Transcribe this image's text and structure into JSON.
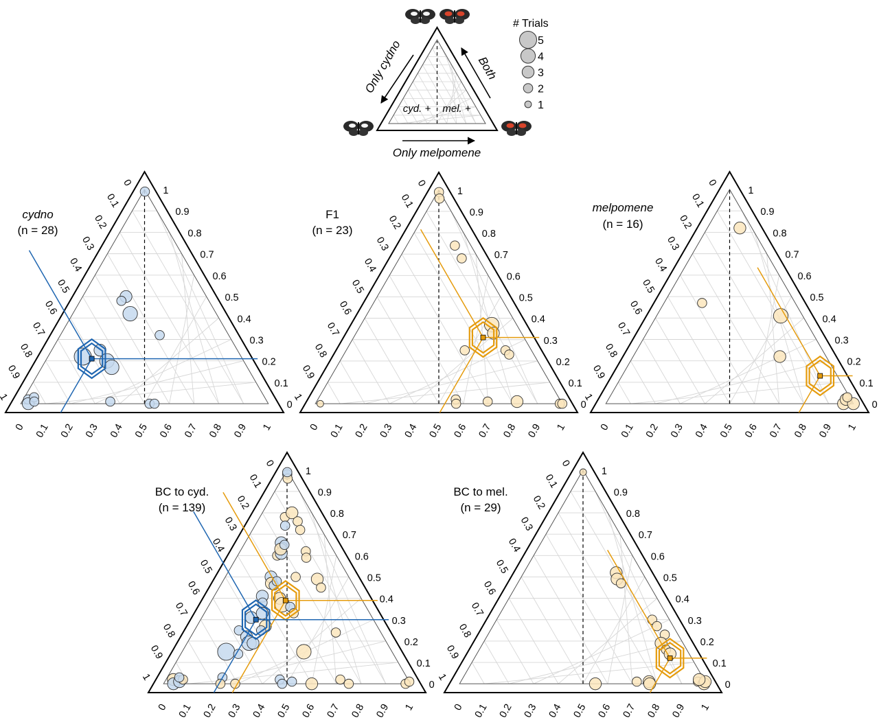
{
  "colors": {
    "cydno": "#1f66b1",
    "cydno_fill": "#c6d9ee",
    "melpomene": "#e59b0c",
    "melpomene_fill": "#fbe6bd",
    "grid": "#d6d6d6",
    "axis": "#000000"
  },
  "legend": {
    "title": "# Trials",
    "items": [
      "5",
      "4",
      "3",
      "2",
      "1"
    ],
    "arrow_left": "Only cydno",
    "arrow_right": "Both",
    "arrow_bottom": "Only melpomene",
    "inner_left": "cyd. +",
    "inner_right": "mel. +"
  },
  "ticks": {
    "left": [
      "0",
      "0.1",
      "0.2",
      "0.3",
      "0.4",
      "0.5",
      "0.6",
      "0.7",
      "0.8",
      "0.9",
      "1"
    ],
    "right": [
      "0",
      "0.1",
      "0.2",
      "0.3",
      "0.4",
      "0.5",
      "0.6",
      "0.7",
      "0.8",
      "0.9",
      "1"
    ],
    "bottom": [
      "0",
      "0.1",
      "0.2",
      "0.3",
      "0.4",
      "0.5",
      "0.6",
      "0.7",
      "0.8",
      "0.9",
      "1"
    ]
  },
  "chart_data": [
    {
      "type": "scatter",
      "title": "cydno",
      "subtitle": "(n = 28)",
      "mean": {
        "series": "cydno",
        "x": 0.23,
        "y": 0.21
      },
      "points": [
        {
          "x": 0.63,
          "y": 0.99,
          "trials": 2,
          "group": "cydno"
        },
        {
          "x": 0.35,
          "y": 0.5,
          "trials": 3,
          "group": "cydno"
        },
        {
          "x": 0.32,
          "y": 0.48,
          "trials": 2,
          "group": "cydno"
        },
        {
          "x": 0.4,
          "y": 0.42,
          "trials": 4,
          "group": "cydno"
        },
        {
          "x": 0.59,
          "y": 0.32,
          "trials": 2,
          "group": "cydno"
        },
        {
          "x": 0.26,
          "y": 0.25,
          "trials": 3,
          "group": "cydno"
        },
        {
          "x": 0.18,
          "y": 0.22,
          "trials": 5,
          "group": "cydno"
        },
        {
          "x": 0.31,
          "y": 0.2,
          "trials": 4,
          "group": "cydno"
        },
        {
          "x": 0.34,
          "y": 0.17,
          "trials": 4,
          "group": "cydno"
        },
        {
          "x": 0.02,
          "y": 0.02,
          "trials": 2,
          "group": "cydno"
        },
        {
          "x": 0.03,
          "y": 0.0,
          "trials": 3,
          "group": "cydno"
        },
        {
          "x": 0.04,
          "y": 0.03,
          "trials": 2,
          "group": "cydno"
        },
        {
          "x": 0.05,
          "y": 0.01,
          "trials": 2,
          "group": "cydno"
        },
        {
          "x": 0.36,
          "y": 0.01,
          "trials": 2,
          "group": "cydno"
        },
        {
          "x": 0.52,
          "y": 0.0,
          "trials": 2,
          "group": "cydno"
        },
        {
          "x": 0.54,
          "y": 0.0,
          "trials": 2,
          "group": "cydno"
        }
      ]
    },
    {
      "type": "scatter",
      "title": "F1",
      "subtitle": "(n = 23)",
      "mean": {
        "series": "melpomene",
        "x": 0.76,
        "y": 0.31
      },
      "points": [
        {
          "x": 0.56,
          "y": 0.99,
          "trials": 2,
          "group": "melpomene"
        },
        {
          "x": 0.57,
          "y": 0.96,
          "trials": 2,
          "group": "melpomene"
        },
        {
          "x": 0.75,
          "y": 0.74,
          "trials": 2,
          "group": "melpomene"
        },
        {
          "x": 0.79,
          "y": 0.68,
          "trials": 2,
          "group": "melpomene"
        },
        {
          "x": 0.84,
          "y": 0.37,
          "trials": 4,
          "group": "melpomene"
        },
        {
          "x": 0.83,
          "y": 0.33,
          "trials": 3,
          "group": "melpomene"
        },
        {
          "x": 0.86,
          "y": 0.25,
          "trials": 2,
          "group": "melpomene"
        },
        {
          "x": 0.87,
          "y": 0.23,
          "trials": 2,
          "group": "melpomene"
        },
        {
          "x": 0.64,
          "y": 0.25,
          "trials": 2,
          "group": "melpomene"
        },
        {
          "x": 0.57,
          "y": 0.02,
          "trials": 2,
          "group": "melpomene"
        },
        {
          "x": 0.7,
          "y": 0.01,
          "trials": 2,
          "group": "melpomene"
        },
        {
          "x": 0.82,
          "y": 0.01,
          "trials": 3,
          "group": "melpomene"
        },
        {
          "x": 0.99,
          "y": 0.0,
          "trials": 2,
          "group": "melpomene"
        },
        {
          "x": 1.0,
          "y": 0.0,
          "trials": 2,
          "group": "melpomene"
        },
        {
          "x": 0.02,
          "y": 0.0,
          "trials": 1,
          "group": "melpomene"
        },
        {
          "x": 0.57,
          "y": 0.0,
          "trials": 2,
          "group": "melpomene"
        }
      ]
    },
    {
      "type": "scatter",
      "title": "melpomene",
      "subtitle": "(n = 16)",
      "mean": {
        "series": "melpomene",
        "x": 0.92,
        "y": 0.13
      },
      "points": [
        {
          "x": 0.73,
          "y": 0.82,
          "trials": 3,
          "group": "melpomene"
        },
        {
          "x": 0.29,
          "y": 0.47,
          "trials": 2,
          "group": "melpomene"
        },
        {
          "x": 0.85,
          "y": 0.41,
          "trials": 4,
          "group": "melpomene"
        },
        {
          "x": 0.76,
          "y": 0.22,
          "trials": 3,
          "group": "melpomene"
        },
        {
          "x": 0.96,
          "y": 0.0,
          "trials": 3,
          "group": "melpomene"
        },
        {
          "x": 0.98,
          "y": 0.02,
          "trials": 3,
          "group": "melpomene"
        },
        {
          "x": 1.0,
          "y": 0.0,
          "trials": 3,
          "group": "melpomene"
        },
        {
          "x": 0.99,
          "y": 0.03,
          "trials": 2,
          "group": "melpomene"
        }
      ]
    },
    {
      "type": "scatter",
      "title": "BC to cyd.",
      "subtitle": "(n = 139)",
      "mean": [
        {
          "series": "melpomene",
          "x": 0.49,
          "y": 0.39
        },
        {
          "series": "cydno",
          "x": 0.32,
          "y": 0.3
        }
      ],
      "points": [
        {
          "x": 0.54,
          "y": 0.98,
          "trials": 2,
          "group": "cydno"
        },
        {
          "x": 0.56,
          "y": 0.96,
          "trials": 2,
          "group": "melpomene"
        },
        {
          "x": 0.58,
          "y": 0.99,
          "trials": 2,
          "group": "cydno"
        },
        {
          "x": 0.46,
          "y": 0.78,
          "trials": 2,
          "group": "melpomene"
        },
        {
          "x": 0.47,
          "y": 0.74,
          "trials": 2,
          "group": "cydno"
        },
        {
          "x": 0.6,
          "y": 0.8,
          "trials": 3,
          "group": "melpomene"
        },
        {
          "x": 0.68,
          "y": 0.76,
          "trials": 2,
          "group": "melpomene"
        },
        {
          "x": 0.69,
          "y": 0.72,
          "trials": 2,
          "group": "melpomene"
        },
        {
          "x": 0.43,
          "y": 0.66,
          "trials": 3,
          "group": "cydno"
        },
        {
          "x": 0.45,
          "y": 0.64,
          "trials": 2,
          "group": "cydno"
        },
        {
          "x": 0.4,
          "y": 0.6,
          "trials": 2,
          "group": "melpomene"
        },
        {
          "x": 0.44,
          "y": 0.61,
          "trials": 3,
          "group": "cydno"
        },
        {
          "x": 0.43,
          "y": 0.63,
          "trials": 3,
          "group": "melpomene"
        },
        {
          "x": 0.47,
          "y": 0.65,
          "trials": 2,
          "group": "cydno"
        },
        {
          "x": 0.7,
          "y": 0.62,
          "trials": 2,
          "group": "melpomene"
        },
        {
          "x": 0.69,
          "y": 0.59,
          "trials": 2,
          "group": "melpomene"
        },
        {
          "x": 0.37,
          "y": 0.5,
          "trials": 3,
          "group": "cydno"
        },
        {
          "x": 0.38,
          "y": 0.47,
          "trials": 3,
          "group": "melpomene"
        },
        {
          "x": 0.4,
          "y": 0.46,
          "trials": 2,
          "group": "cydno"
        },
        {
          "x": 0.42,
          "y": 0.48,
          "trials": 2,
          "group": "cydno"
        },
        {
          "x": 0.74,
          "y": 0.49,
          "trials": 3,
          "group": "melpomene"
        },
        {
          "x": 0.75,
          "y": 0.45,
          "trials": 2,
          "group": "melpomene"
        },
        {
          "x": 0.57,
          "y": 0.5,
          "trials": 2,
          "group": "melpomene"
        },
        {
          "x": 0.33,
          "y": 0.41,
          "trials": 3,
          "group": "cydno"
        },
        {
          "x": 0.34,
          "y": 0.38,
          "trials": 2,
          "group": "cydno"
        },
        {
          "x": 0.45,
          "y": 0.4,
          "trials": 3,
          "group": "melpomene"
        },
        {
          "x": 0.47,
          "y": 0.37,
          "trials": 4,
          "group": "melpomene"
        },
        {
          "x": 0.52,
          "y": 0.36,
          "trials": 2,
          "group": "cydno"
        },
        {
          "x": 0.54,
          "y": 0.33,
          "trials": 2,
          "group": "melpomene"
        },
        {
          "x": 0.29,
          "y": 0.31,
          "trials": 3,
          "group": "cydno"
        },
        {
          "x": 0.35,
          "y": 0.33,
          "trials": 3,
          "group": "cydno"
        },
        {
          "x": 0.38,
          "y": 0.27,
          "trials": 3,
          "group": "melpomene"
        },
        {
          "x": 0.36,
          "y": 0.25,
          "trials": 2,
          "group": "cydno"
        },
        {
          "x": 0.24,
          "y": 0.25,
          "trials": 2,
          "group": "cydno"
        },
        {
          "x": 0.29,
          "y": 0.22,
          "trials": 3,
          "group": "cydno"
        },
        {
          "x": 0.31,
          "y": 0.19,
          "trials": 4,
          "group": "cydno"
        },
        {
          "x": 0.33,
          "y": 0.19,
          "trials": 3,
          "group": "cydno"
        },
        {
          "x": 0.76,
          "y": 0.24,
          "trials": 2,
          "group": "melpomene"
        },
        {
          "x": 0.21,
          "y": 0.15,
          "trials": 5,
          "group": "cydno"
        },
        {
          "x": 0.27,
          "y": 0.14,
          "trials": 2,
          "group": "cydno"
        },
        {
          "x": 0.58,
          "y": 0.15,
          "trials": 4,
          "group": "melpomene"
        },
        {
          "x": 0.03,
          "y": 0.02,
          "trials": 3,
          "group": "melpomene"
        },
        {
          "x": 0.04,
          "y": 0.0,
          "trials": 3,
          "group": "cydno"
        },
        {
          "x": 0.06,
          "y": 0.01,
          "trials": 3,
          "group": "cydno"
        },
        {
          "x": 0.07,
          "y": 0.02,
          "trials": 2,
          "group": "melpomene"
        },
        {
          "x": 0.05,
          "y": 0.03,
          "trials": 2,
          "group": "cydno"
        },
        {
          "x": 0.23,
          "y": 0.03,
          "trials": 2,
          "group": "cydno"
        },
        {
          "x": 0.23,
          "y": 0.0,
          "trials": 2,
          "group": "melpomene"
        },
        {
          "x": 0.29,
          "y": 0.0,
          "trials": 2,
          "group": "melpomene"
        },
        {
          "x": 0.47,
          "y": 0.02,
          "trials": 2,
          "group": "cydno"
        },
        {
          "x": 0.48,
          "y": 0.0,
          "trials": 2,
          "group": "cydno"
        },
        {
          "x": 0.52,
          "y": 0.01,
          "trials": 2,
          "group": "cydno"
        },
        {
          "x": 0.6,
          "y": 0.0,
          "trials": 3,
          "group": "melpomene"
        },
        {
          "x": 0.72,
          "y": 0.02,
          "trials": 2,
          "group": "melpomene"
        },
        {
          "x": 0.75,
          "y": 0.0,
          "trials": 2,
          "group": "melpomene"
        },
        {
          "x": 0.98,
          "y": 0.0,
          "trials": 2,
          "group": "melpomene"
        },
        {
          "x": 1.0,
          "y": 0.01,
          "trials": 2,
          "group": "melpomene"
        }
      ]
    },
    {
      "type": "scatter",
      "title": "BC to mel.",
      "subtitle": "(n = 29)",
      "mean": {
        "series": "melpomene",
        "x": 0.9,
        "y": 0.12
      },
      "points": [
        {
          "x": 0.55,
          "y": 0.99,
          "trials": 1,
          "group": "melpomene"
        },
        {
          "x": 0.78,
          "y": 0.52,
          "trials": 3,
          "group": "melpomene"
        },
        {
          "x": 0.77,
          "y": 0.49,
          "trials": 3,
          "group": "melpomene"
        },
        {
          "x": 0.79,
          "y": 0.47,
          "trials": 2,
          "group": "melpomene"
        },
        {
          "x": 0.9,
          "y": 0.3,
          "trials": 2,
          "group": "melpomene"
        },
        {
          "x": 0.91,
          "y": 0.27,
          "trials": 2,
          "group": "melpomene"
        },
        {
          "x": 0.93,
          "y": 0.23,
          "trials": 2,
          "group": "melpomene"
        },
        {
          "x": 0.89,
          "y": 0.19,
          "trials": 3,
          "group": "melpomene"
        },
        {
          "x": 0.9,
          "y": 0.16,
          "trials": 2,
          "group": "melpomene"
        },
        {
          "x": 0.91,
          "y": 0.14,
          "trials": 3,
          "group": "melpomene"
        },
        {
          "x": 0.55,
          "y": 0.0,
          "trials": 3,
          "group": "melpomene"
        },
        {
          "x": 0.72,
          "y": 0.01,
          "trials": 2,
          "group": "melpomene"
        },
        {
          "x": 0.77,
          "y": 0.01,
          "trials": 3,
          "group": "melpomene"
        },
        {
          "x": 0.77,
          "y": 0.0,
          "trials": 3,
          "group": "melpomene"
        },
        {
          "x": 0.97,
          "y": 0.01,
          "trials": 2,
          "group": "melpomene"
        },
        {
          "x": 0.99,
          "y": 0.0,
          "trials": 3,
          "group": "melpomene"
        },
        {
          "x": 1.0,
          "y": 0.01,
          "trials": 3,
          "group": "melpomene"
        },
        {
          "x": 0.98,
          "y": 0.02,
          "trials": 3,
          "group": "melpomene"
        }
      ]
    }
  ]
}
